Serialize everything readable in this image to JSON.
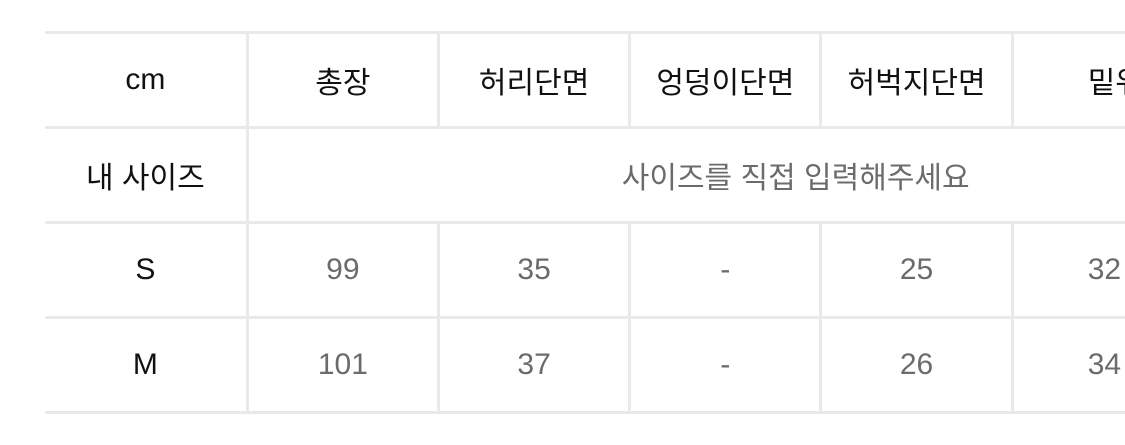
{
  "table": {
    "unit_label": "cm",
    "columns": [
      "총장",
      "허리단면",
      "엉덩이단면",
      "허벅지단면",
      "밑위"
    ],
    "my_size": {
      "label": "내 사이즈",
      "placeholder": "사이즈를 직접 입력해주세요"
    },
    "rows": [
      {
        "size": "S",
        "values": [
          "99",
          "35",
          "-",
          "25",
          "32"
        ]
      },
      {
        "size": "M",
        "values": [
          "101",
          "37",
          "-",
          "26",
          "34"
        ]
      }
    ]
  },
  "colors": {
    "border": "#e9e9e9",
    "header_text": "#111111",
    "value_text": "#6b6b6b"
  }
}
